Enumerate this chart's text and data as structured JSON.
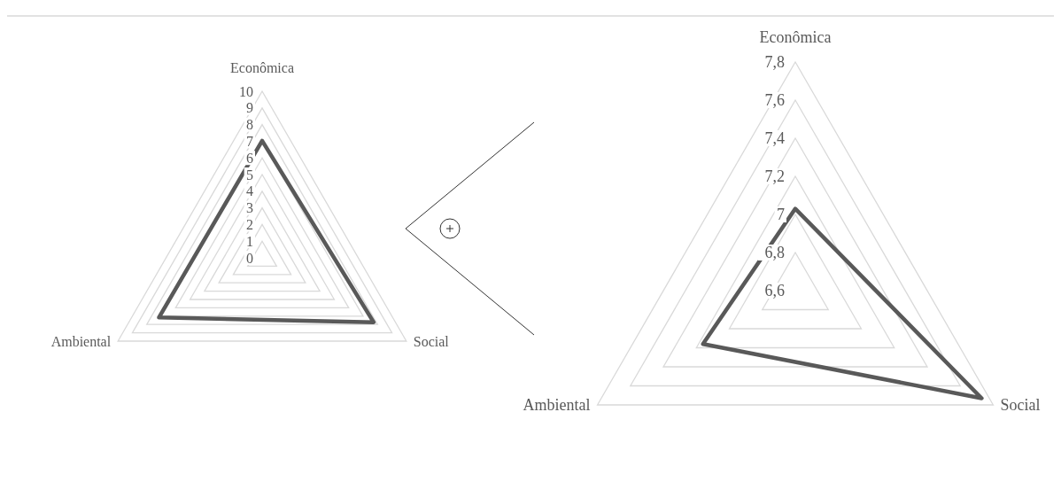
{
  "chart_data": [
    {
      "type": "radar",
      "categories": [
        "Econômica",
        "Social",
        "Ambiental"
      ],
      "ylim": [
        0,
        10
      ],
      "yticks": [
        {
          "value": 0,
          "label": "0"
        },
        1,
        2,
        3,
        4,
        5,
        6,
        7,
        8,
        9,
        10
      ],
      "series": [
        {
          "color": "#595959",
          "values": [
            7.03,
            7.73,
            7.16
          ]
        }
      ]
    },
    {
      "type": "radar",
      "categories": [
        "Econômica",
        "Social",
        "Ambiental"
      ],
      "ylim": [
        6.6,
        7.8
      ],
      "yticks": [
        {
          "value": 6.6,
          "label": "6,6"
        },
        {
          "value": 6.8,
          "label": "6,8"
        },
        {
          "value": 7,
          "label": "7"
        },
        {
          "value": 7.2,
          "label": "7,2"
        },
        {
          "value": 7.4,
          "label": "7,4"
        },
        {
          "value": 7.6,
          "label": "7,6"
        },
        {
          "value": 7.8,
          "label": "7,8"
        }
      ],
      "series": [
        {
          "color": "#595959",
          "values": [
            7.03,
            7.73,
            7.16
          ]
        }
      ]
    }
  ]
}
